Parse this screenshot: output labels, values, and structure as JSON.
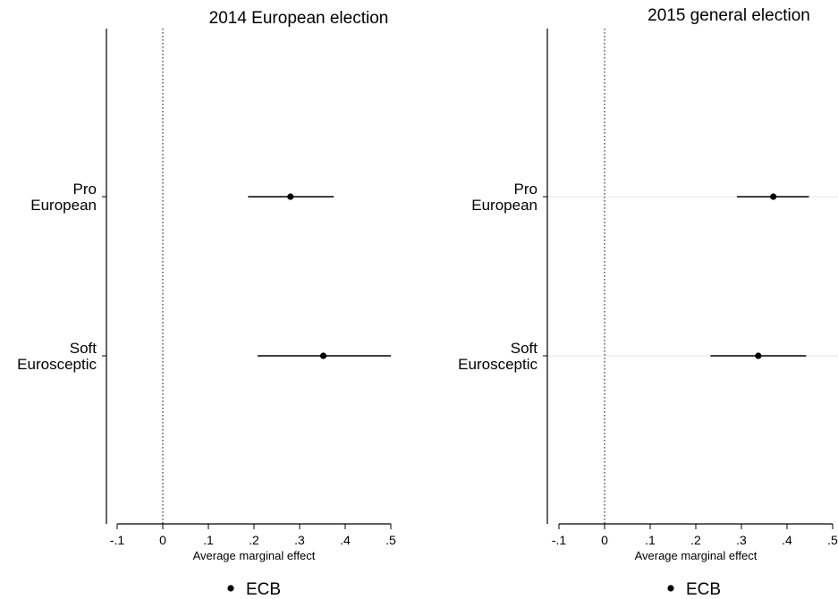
{
  "chart_data": [
    {
      "type": "coefficient-plot",
      "title": "2014 European election",
      "xlabel": "Average marginal effect",
      "xlim": [
        -0.12,
        0.52
      ],
      "xticks": [
        -0.1,
        0,
        0.1,
        0.2,
        0.3,
        0.4,
        0.5
      ],
      "xtick_labels": [
        "-.1",
        "0",
        ".1",
        ".2",
        ".3",
        ".4",
        ".5"
      ],
      "reference_line": 0,
      "categories": [
        [
          "Pro",
          "European"
        ],
        [
          "Soft",
          "Eurosceptic"
        ]
      ],
      "series": [
        {
          "name": "ECB",
          "estimates": [
            0.28,
            0.352
          ],
          "ci_low": [
            0.187,
            0.208
          ],
          "ci_high": [
            0.375,
            0.5
          ]
        }
      ],
      "legend": {
        "position": "bottom",
        "labels": [
          "ECB"
        ]
      },
      "grid": false
    },
    {
      "type": "coefficient-plot",
      "title": "2015 general election",
      "xlabel": "Average marginal effect",
      "xlim": [
        -0.12,
        0.52
      ],
      "xticks": [
        -0.1,
        0,
        0.1,
        0.2,
        0.3,
        0.4,
        0.5
      ],
      "xtick_labels": [
        "-.1",
        "0",
        ".1",
        ".2",
        ".3",
        ".4",
        ".5"
      ],
      "reference_line": 0,
      "categories": [
        [
          "Pro",
          "European"
        ],
        [
          "Soft",
          "Eurosceptic"
        ]
      ],
      "series": [
        {
          "name": "ECB",
          "estimates": [
            0.37,
            0.337
          ],
          "ci_low": [
            0.29,
            0.232
          ],
          "ci_high": [
            0.448,
            0.442
          ]
        }
      ],
      "legend": {
        "position": "bottom",
        "labels": [
          "ECB"
        ]
      },
      "grid": true
    }
  ]
}
